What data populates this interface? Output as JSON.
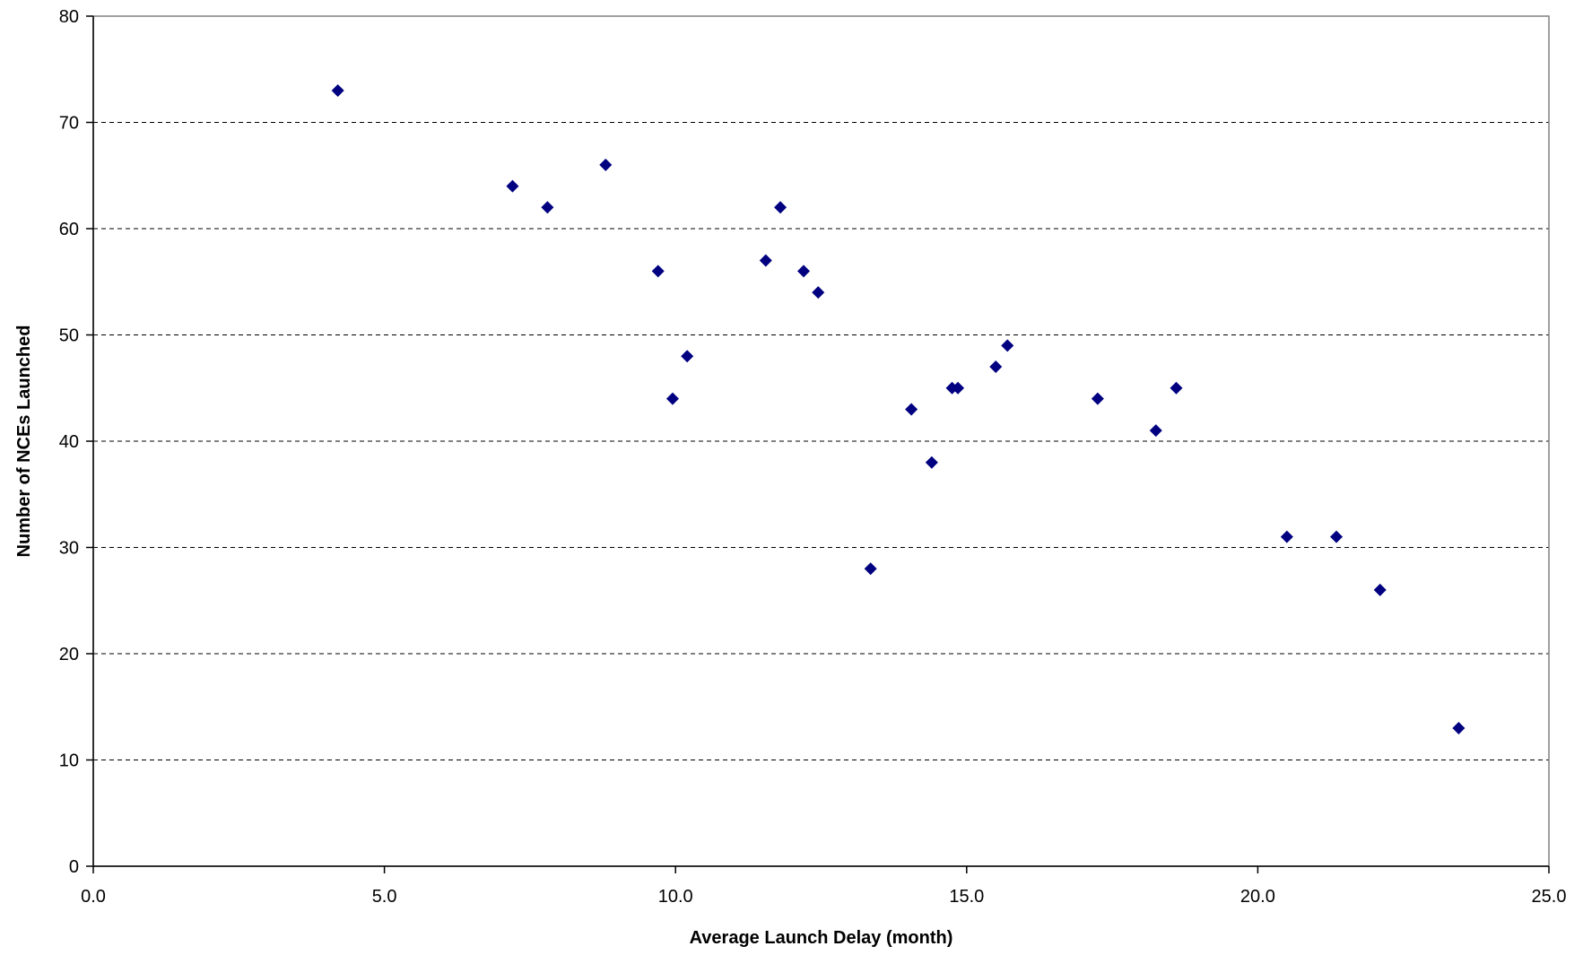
{
  "chart_data": {
    "type": "scatter",
    "title": "",
    "xlabel": "Average Launch Delay (month)",
    "ylabel": "Number of NCEs Launched",
    "xlim": [
      0,
      25
    ],
    "ylim": [
      0,
      80
    ],
    "x_ticks": [
      0,
      5,
      10,
      15,
      20,
      25
    ],
    "x_tick_labels": [
      "0.0",
      "5.0",
      "10.0",
      "15.0",
      "20.0",
      "25.0"
    ],
    "y_ticks": [
      0,
      10,
      20,
      30,
      40,
      50,
      60,
      70,
      80
    ],
    "y_tick_labels": [
      "0",
      "10",
      "20",
      "30",
      "40",
      "50",
      "60",
      "70",
      "80"
    ],
    "grid": "horizontal dashed",
    "legend": "none",
    "marker": "diamond",
    "marker_color": "#000080",
    "series": [
      {
        "points": [
          {
            "x": 4.2,
            "y": 73
          },
          {
            "x": 7.2,
            "y": 64
          },
          {
            "x": 7.8,
            "y": 62
          },
          {
            "x": 8.8,
            "y": 66
          },
          {
            "x": 9.7,
            "y": 56
          },
          {
            "x": 9.95,
            "y": 44
          },
          {
            "x": 10.2,
            "y": 48
          },
          {
            "x": 11.55,
            "y": 57
          },
          {
            "x": 11.8,
            "y": 62
          },
          {
            "x": 12.2,
            "y": 56
          },
          {
            "x": 12.45,
            "y": 54
          },
          {
            "x": 13.35,
            "y": 28
          },
          {
            "x": 14.05,
            "y": 43
          },
          {
            "x": 14.4,
            "y": 38
          },
          {
            "x": 14.75,
            "y": 45
          },
          {
            "x": 14.85,
            "y": 45
          },
          {
            "x": 15.5,
            "y": 47
          },
          {
            "x": 15.7,
            "y": 49
          },
          {
            "x": 17.25,
            "y": 44
          },
          {
            "x": 18.25,
            "y": 41
          },
          {
            "x": 18.6,
            "y": 45
          },
          {
            "x": 20.5,
            "y": 31
          },
          {
            "x": 21.35,
            "y": 31
          },
          {
            "x": 22.1,
            "y": 26
          },
          {
            "x": 23.45,
            "y": 13
          }
        ]
      }
    ]
  }
}
